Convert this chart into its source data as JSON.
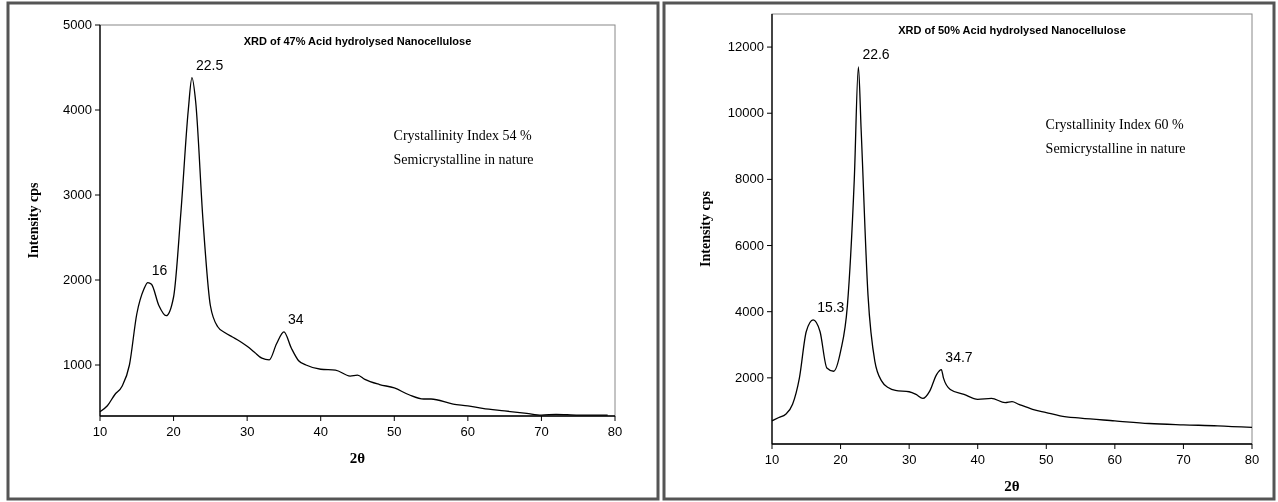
{
  "chart_data": [
    {
      "type": "line",
      "title": "XRD of 47% Acid hydrolysed Nanocellulose",
      "xlabel": "2θ",
      "ylabel": "Intensity cps",
      "xlim": [
        10,
        80
      ],
      "xticks": [
        10,
        20,
        30,
        40,
        50,
        60,
        70,
        80
      ],
      "ylim": [
        400,
        5000
      ],
      "yticks": [
        1000,
        2000,
        3000,
        4000,
        5000
      ],
      "grid": false,
      "marker": "none",
      "line_style": "solid",
      "annotations": [
        {
          "text": "16",
          "x": 16.5,
          "y": 1970
        },
        {
          "text": "22.5",
          "x": 22.5,
          "y": 4380
        },
        {
          "text": "34",
          "x": 35,
          "y": 1390
        },
        "Crystallinity Index 54 %",
        "Semicrystalline in nature"
      ],
      "series": [
        {
          "color": "#000000",
          "x": [
            10,
            11,
            12,
            13,
            14,
            15,
            16,
            16.5,
            17,
            18,
            19,
            20,
            21,
            22,
            22.5,
            23,
            24,
            25,
            26,
            27,
            28,
            29,
            30,
            31,
            32,
            33,
            34,
            35,
            36,
            37,
            38,
            40,
            42,
            44,
            45,
            46,
            48,
            50,
            52,
            54,
            55,
            58,
            60,
            62,
            65,
            68,
            70,
            72,
            75,
            79
          ],
          "values": [
            450,
            520,
            650,
            750,
            1000,
            1600,
            1900,
            1970,
            1950,
            1700,
            1580,
            1800,
            2800,
            4000,
            4380,
            4100,
            2700,
            1700,
            1450,
            1380,
            1330,
            1280,
            1220,
            1150,
            1080,
            1060,
            1250,
            1390,
            1200,
            1050,
            1000,
            950,
            940,
            870,
            880,
            830,
            770,
            730,
            650,
            600,
            600,
            540,
            520,
            490,
            460,
            430,
            410,
            420,
            410,
            410
          ]
        }
      ]
    },
    {
      "type": "line",
      "title": "XRD of 50%  Acid hydrolysed Nanocellulose",
      "xlabel": "2θ",
      "ylabel": "Intensity cps",
      "xlim": [
        10,
        80
      ],
      "xticks": [
        10,
        20,
        30,
        40,
        50,
        60,
        70,
        80
      ],
      "ylim": [
        0,
        13000
      ],
      "yticks": [
        2000,
        4000,
        6000,
        8000,
        10000,
        12000
      ],
      "grid": false,
      "marker": "none",
      "line_style": "solid",
      "annotations": [
        {
          "text": "15.3",
          "x": 16,
          "y": 3750
        },
        {
          "text": "22.6",
          "x": 22.6,
          "y": 11400
        },
        {
          "text": "34.7",
          "x": 34.7,
          "y": 2250
        },
        "Crystallinity Index 60 %",
        "Semicrystalline in nature"
      ],
      "series": [
        {
          "color": "#000000",
          "x": [
            10,
            11,
            12,
            13,
            14,
            15,
            16,
            17,
            18,
            19,
            20,
            21,
            22,
            22.6,
            23,
            24,
            25,
            26,
            27,
            28,
            30,
            31,
            32,
            33,
            34,
            34.7,
            35,
            36,
            38,
            40,
            42,
            44,
            45,
            46,
            48,
            50,
            52,
            55,
            60,
            65,
            70,
            75,
            80
          ],
          "values": [
            700,
            800,
            900,
            1200,
            2000,
            3400,
            3750,
            3400,
            2300,
            2200,
            2800,
            4200,
            8000,
            11400,
            9500,
            4500,
            2500,
            1900,
            1700,
            1620,
            1580,
            1500,
            1380,
            1600,
            2100,
            2250,
            2000,
            1650,
            1500,
            1350,
            1380,
            1250,
            1280,
            1200,
            1050,
            950,
            850,
            780,
            700,
            620,
            580,
            550,
            500
          ]
        }
      ]
    }
  ]
}
